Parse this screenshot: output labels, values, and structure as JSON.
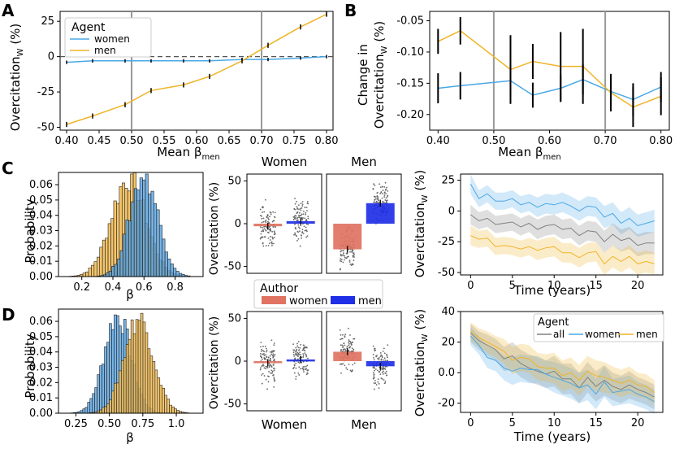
{
  "colors": {
    "women": "#4aa8e6",
    "men": "#f0b429",
    "all": "#808080",
    "author_women": "#e07361",
    "author_men": "#1f2fe6",
    "errbar": "#000000",
    "hist_blue": "#5aa4e0",
    "hist_orange": "#f2b84c"
  },
  "panel_letters": {
    "a": "A",
    "b": "B",
    "c": "C",
    "d": "D"
  },
  "chart_data": [
    {
      "id": "A",
      "type": "line",
      "ylabel_main": "Overcitation",
      "ylabel_sub": "W",
      "ylabel_unit": " (%)",
      "xlabel_main": "Mean β",
      "xlabel_sub": "men",
      "x": [
        0.4,
        0.44,
        0.49,
        0.53,
        0.58,
        0.62,
        0.67,
        0.71,
        0.76,
        0.8
      ],
      "series": [
        {
          "name": "women",
          "values": [
            -4,
            -3,
            -3,
            -3,
            -3,
            -3,
            -2,
            -2,
            -1,
            0
          ],
          "err": [
            1.2,
            1.2,
            1.2,
            1.2,
            1.2,
            1.2,
            1.2,
            1.2,
            1.2,
            1.2
          ]
        },
        {
          "name": "men",
          "values": [
            -48,
            -42,
            -34,
            -24,
            -20,
            -14,
            -3,
            8,
            21,
            30
          ],
          "err": [
            1.8,
            1.8,
            1.8,
            1.8,
            1.8,
            1.8,
            1.8,
            1.8,
            1.8,
            1.8
          ]
        }
      ],
      "xlim": [
        0.39,
        0.81
      ],
      "ylim": [
        -52,
        32
      ],
      "xticks": [
        "0.40",
        "0.45",
        "0.50",
        "0.55",
        "0.60",
        "0.65",
        "0.70",
        "0.75",
        "0.80"
      ],
      "yticks": [
        "25",
        "0",
        "-25",
        "-50"
      ],
      "vlines": [
        0.5,
        0.7
      ],
      "hline": 0,
      "legend": {
        "title": "Agent",
        "items": [
          "women",
          "men"
        ]
      }
    },
    {
      "id": "B",
      "type": "line",
      "ylabel_line1": "Change in",
      "ylabel_main": "Overcitation",
      "ylabel_sub": "W",
      "ylabel_unit": " (%)",
      "xlabel_main": "Mean β",
      "xlabel_sub": "men",
      "x": [
        0.4,
        0.44,
        0.53,
        0.57,
        0.62,
        0.66,
        0.71,
        0.75,
        0.8
      ],
      "series": [
        {
          "name": "women",
          "values": [
            -0.158,
            -0.154,
            -0.146,
            -0.169,
            -0.158,
            -0.144,
            -0.163,
            -0.176,
            -0.156
          ],
          "err": [
            0.024,
            0.022,
            0.026,
            0.02,
            0.022,
            0.024,
            0.024,
            0.026,
            0.024
          ]
        },
        {
          "name": "men",
          "values": [
            -0.083,
            -0.066,
            -0.128,
            -0.115,
            -0.123,
            -0.123,
            -0.165,
            -0.188,
            -0.171
          ],
          "err": [
            0.02,
            0.022,
            0.055,
            0.028,
            0.055,
            0.06,
            0.03,
            0.032,
            0.03
          ]
        }
      ],
      "xlim": [
        0.385,
        0.815
      ],
      "ylim": [
        -0.225,
        -0.035
      ],
      "xticks": [
        "0.40",
        "0.50",
        "0.60",
        "0.70",
        "0.80"
      ],
      "yticks": [
        "-0.05",
        "-0.10",
        "-0.15",
        "-0.20"
      ],
      "vlines": [
        0.5,
        0.7
      ]
    },
    {
      "id": "C_hist",
      "type": "bar",
      "ylabel": "Probability",
      "xlabel": "β",
      "xlim": [
        0.05,
        0.98
      ],
      "ylim": [
        0,
        0.068
      ],
      "xticks": [
        "0.2",
        "0.4",
        "0.6",
        "0.8"
      ],
      "yticks": [
        "0.00",
        "0.01",
        "0.02",
        "0.03",
        "0.04",
        "0.05",
        "0.06"
      ],
      "series": [
        {
          "name": "orange",
          "mean": 0.5,
          "sd": 0.11,
          "peak": 0.064
        },
        {
          "name": "blue",
          "mean": 0.6,
          "sd": 0.09,
          "peak": 0.067
        }
      ]
    },
    {
      "id": "C_bars",
      "type": "bar",
      "ylabel": "Overcitation (%)",
      "groups": [
        "Women",
        "Men"
      ],
      "group_label_position": "top",
      "values": {
        "Women": {
          "women": -3,
          "men": 3
        },
        "Men": {
          "women": -30,
          "men": 24
        }
      },
      "ylim": [
        -58,
        58
      ],
      "yticks": [
        "50",
        "0",
        "-50"
      ]
    },
    {
      "id": "C_time",
      "type": "line",
      "ylabel_main": "Overcitation",
      "ylabel_sub": "W",
      "ylabel_unit": " (%)",
      "xlabel": "Time (years)",
      "x": [
        0,
        1,
        2,
        3,
        4,
        5,
        6,
        7,
        8,
        9,
        10,
        11,
        12,
        13,
        14,
        15,
        16,
        17,
        18,
        19,
        20,
        21,
        22
      ],
      "series": [
        {
          "name": "women",
          "values": [
            22,
            10,
            14,
            8,
            8,
            10,
            5,
            7,
            3,
            6,
            5,
            7,
            4,
            0,
            4,
            3,
            -5,
            -2,
            -10,
            -6,
            -12,
            -10,
            -8
          ]
        },
        {
          "name": "all",
          "values": [
            -3,
            -8,
            -6,
            -11,
            -10,
            -9,
            -13,
            -10,
            -15,
            -12,
            -11,
            -15,
            -14,
            -20,
            -16,
            -17,
            -25,
            -19,
            -24,
            -22,
            -28,
            -26,
            -26
          ]
        },
        {
          "name": "men",
          "values": [
            -20,
            -23,
            -22,
            -29,
            -28,
            -29,
            -31,
            -29,
            -32,
            -30,
            -29,
            -34,
            -34,
            -38,
            -34,
            -33,
            -43,
            -37,
            -41,
            -37,
            -43,
            -41,
            -43
          ]
        }
      ],
      "band_width": [
        8,
        7,
        7,
        7,
        7,
        7,
        7,
        7,
        8,
        8,
        8,
        8,
        8,
        8,
        8,
        8,
        9,
        9,
        9,
        9,
        9,
        9,
        9
      ],
      "xlim": [
        -1.2,
        23
      ],
      "ylim": [
        -52,
        30
      ],
      "xticks": [
        "0",
        "5",
        "10",
        "15",
        "20"
      ],
      "yticks": [
        "25",
        "0",
        "-25",
        "-50"
      ]
    },
    {
      "id": "D_hist",
      "type": "bar",
      "ylabel": "Probability",
      "xlabel": "β",
      "xlim": [
        0.12,
        1.2
      ],
      "ylim": [
        0,
        0.068
      ],
      "xticks": [
        "0.25",
        "0.50",
        "0.75",
        "1.0"
      ],
      "yticks": [
        "0.00",
        "0.01",
        "0.02",
        "0.03",
        "0.04",
        "0.05",
        "0.06"
      ],
      "series": [
        {
          "name": "blue",
          "mean": 0.56,
          "sd": 0.1,
          "peak": 0.064
        },
        {
          "name": "orange",
          "mean": 0.72,
          "sd": 0.11,
          "peak": 0.062
        }
      ]
    },
    {
      "id": "D_bars",
      "type": "bar",
      "ylabel": "Overcitation (%)",
      "groups": [
        "Women",
        "Men"
      ],
      "group_label_position": "bottom",
      "values": {
        "Women": {
          "women": -2,
          "men": 2
        },
        "Men": {
          "women": 11,
          "men": -6
        }
      },
      "ylim": [
        -58,
        58
      ],
      "yticks": [
        "50",
        "0",
        "-50"
      ]
    },
    {
      "id": "D_time",
      "type": "line",
      "ylabel_main": "Overcitation",
      "ylabel_sub": "W",
      "ylabel_unit": " (%)",
      "xlabel": "Time (years)",
      "x": [
        0,
        1,
        2,
        3,
        4,
        5,
        6,
        7,
        8,
        9,
        10,
        11,
        12,
        13,
        14,
        15,
        16,
        17,
        18,
        19,
        20,
        21,
        22
      ],
      "series": [
        {
          "name": "all",
          "values": [
            26,
            21,
            18,
            15,
            9,
            11,
            6,
            3,
            1,
            -1,
            1,
            -4,
            -4,
            -10,
            -3,
            -9,
            -5,
            -9,
            -11,
            -8,
            -11,
            -13,
            -16
          ]
        },
        {
          "name": "women",
          "values": [
            24,
            18,
            10,
            8,
            3,
            1,
            3,
            2,
            2,
            -1,
            -3,
            -5,
            -7,
            -10,
            -8,
            -14,
            -6,
            -13,
            -12,
            -11,
            -14,
            -16,
            -19
          ]
        },
        {
          "name": "men",
          "values": [
            27,
            23,
            20,
            17,
            14,
            8,
            10,
            9,
            4,
            3,
            3,
            -2,
            0,
            -5,
            1,
            -2,
            -3,
            -5,
            -7,
            -5,
            -8,
            -9,
            -13
          ]
        }
      ],
      "band_width": [
        6,
        6,
        7,
        7,
        8,
        9,
        9,
        9,
        9,
        9,
        10,
        10,
        10,
        10,
        10,
        10,
        10,
        9,
        9,
        9,
        8,
        8,
        8
      ],
      "xlim": [
        -1.2,
        23
      ],
      "ylim": [
        -26,
        40
      ],
      "xticks": [
        "0",
        "5",
        "10",
        "15",
        "20"
      ],
      "yticks": [
        "40",
        "20",
        "0.0",
        "-20"
      ],
      "legend": {
        "title": "Agent",
        "items": [
          "all",
          "women",
          "men"
        ]
      }
    }
  ],
  "author_legend": {
    "title": "Author",
    "items": [
      "women",
      "men"
    ]
  }
}
